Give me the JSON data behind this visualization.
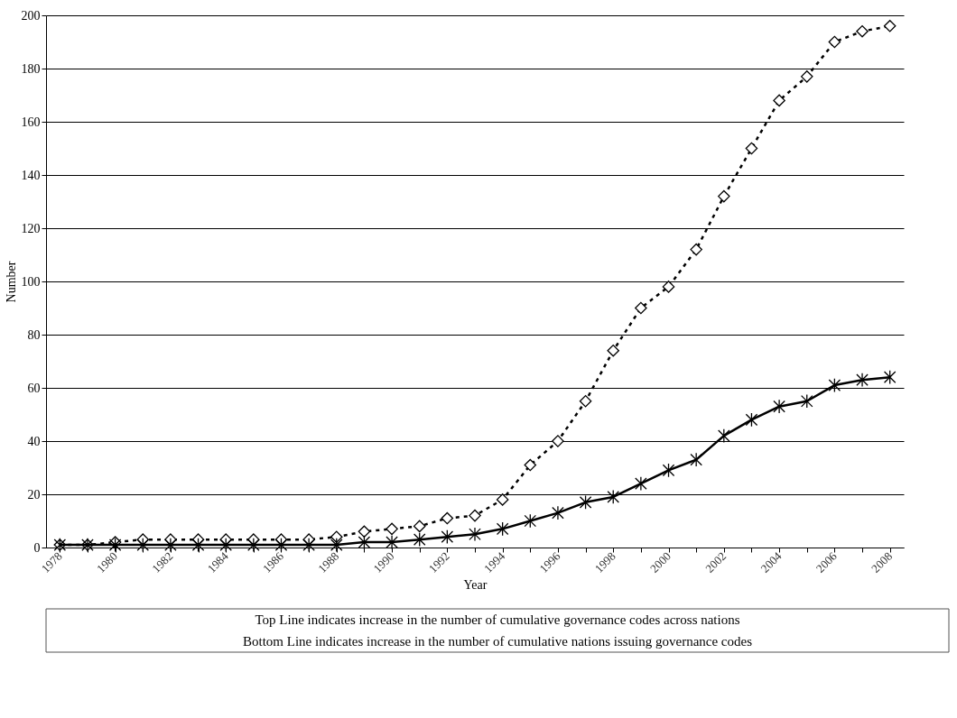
{
  "chart_data": {
    "type": "line",
    "xlabel": "Year",
    "ylabel": "Number",
    "categories": [
      "1978",
      null,
      "1980",
      null,
      "1982",
      null,
      "1984",
      null,
      "1986",
      null,
      "1988",
      null,
      "1990",
      null,
      "1992",
      null,
      "1994",
      null,
      "1996",
      null,
      "1998",
      null,
      "2000",
      null,
      "2002",
      null,
      "2004",
      null,
      "2006",
      null,
      "2008"
    ],
    "series": [
      {
        "color": "#000000",
        "marker": "diamond",
        "line_style": "dotted",
        "values": [
          1,
          1,
          2,
          3,
          3,
          3,
          3,
          3,
          3,
          3,
          4,
          6,
          7,
          8,
          11,
          12,
          18,
          31,
          40,
          55,
          74,
          90,
          98,
          112,
          132,
          150,
          168,
          177,
          190,
          194,
          196
        ]
      },
      {
        "color": "#000000",
        "marker": "cross",
        "line_style": "solid",
        "values": [
          1,
          1,
          1,
          1,
          1,
          1,
          1,
          1,
          1,
          1,
          1,
          2,
          2,
          3,
          4,
          5,
          7,
          10,
          13,
          17,
          19,
          24,
          29,
          33,
          42,
          48,
          53,
          55,
          61,
          63,
          64
        ]
      }
    ],
    "ylim": [
      0,
      200
    ],
    "yticks": [
      0,
      20,
      40,
      60,
      80,
      100,
      120,
      140,
      160,
      180,
      200
    ],
    "grid": "y",
    "legend": false,
    "annotations": [
      "Top Line indicates increase in the number of cumulative governance codes across nations",
      "Bottom Line indicates increase in the number of cumulative nations issuing governance codes"
    ]
  }
}
